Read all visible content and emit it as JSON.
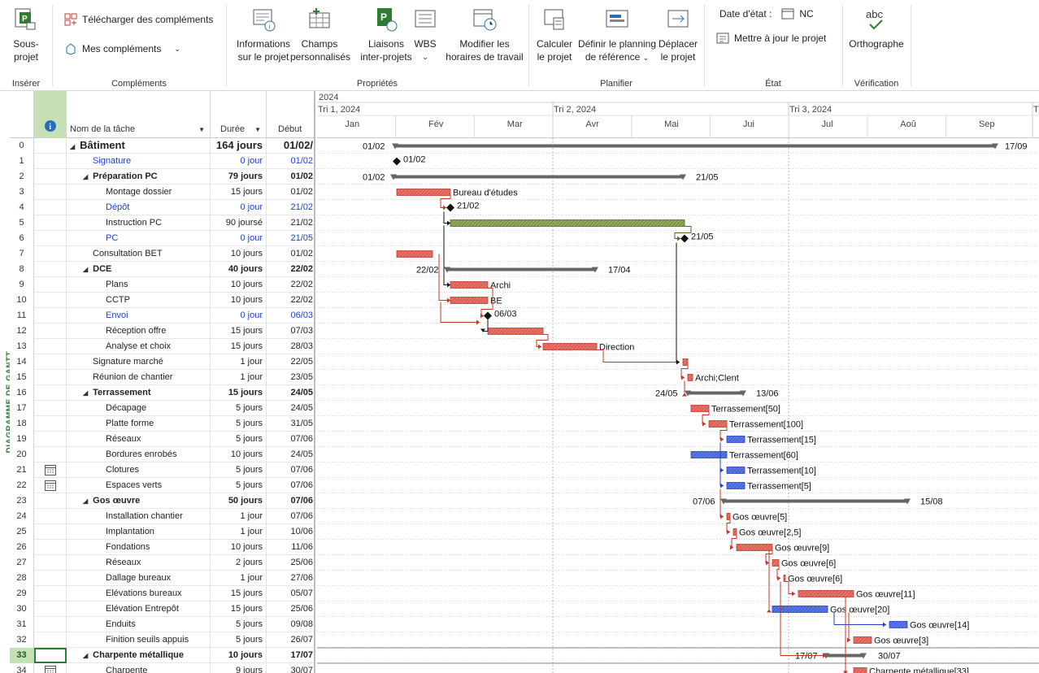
{
  "ribbon": {
    "groups": {
      "inserer": "Insérer",
      "complements": "Compléments",
      "proprietes": "Propriétés",
      "planifier": "Planifier",
      "etat": "État",
      "verification": "Vérification"
    },
    "sous_projet": [
      "Sous-",
      "projet"
    ],
    "telecharger": "Télécharger des compléments",
    "mes_complements": "Mes compléments",
    "infos_projet": [
      "Informations",
      "sur le projet"
    ],
    "champs_perso": [
      "Champs",
      "personnalisés"
    ],
    "liaisons": [
      "Liaisons",
      "inter-projets"
    ],
    "wbs": "WBS",
    "modifier_horaires": [
      "Modifier les",
      "horaires de travail"
    ],
    "calculer": [
      "Calculer",
      "le projet"
    ],
    "definir_planning": [
      "Définir le planning",
      "de référence"
    ],
    "deplacer": [
      "Déplacer",
      "le projet"
    ],
    "date_etat_label": "Date d'état :",
    "date_etat_value": "NC",
    "mettre_a_jour": "Mettre à jour le projet",
    "orthographe": "Orthographe",
    "abc": "abc"
  },
  "sidebar_label": "DIAGRAMME DE GANTT",
  "table": {
    "headers": {
      "name": "Nom de la tâche",
      "duration": "Durée",
      "start": "Début"
    },
    "rows": [
      {
        "id": "0",
        "name": "Bâtiment",
        "dur": "164 jours",
        "start": "01/02/",
        "type": "summary",
        "level": 0
      },
      {
        "id": "1",
        "name": "Signature",
        "dur": "0 jour",
        "start": "01/02",
        "type": "milestone",
        "level": 1
      },
      {
        "id": "2",
        "name": "Préparation PC",
        "dur": "79 jours",
        "start": "01/02",
        "type": "summary",
        "level": 1
      },
      {
        "id": "3",
        "name": "Montage dossier",
        "dur": "15 jours",
        "start": "01/02",
        "type": "task",
        "level": 2
      },
      {
        "id": "4",
        "name": "Dépôt",
        "dur": "0 jour",
        "start": "21/02",
        "type": "milestone",
        "level": 2
      },
      {
        "id": "5",
        "name": "Instruction PC",
        "dur": "90 joursé",
        "start": "21/02",
        "type": "task",
        "level": 2
      },
      {
        "id": "6",
        "name": "PC",
        "dur": "0 jour",
        "start": "21/05",
        "type": "milestone",
        "level": 2
      },
      {
        "id": "7",
        "name": "Consultation BET",
        "dur": "10 jours",
        "start": "01/02",
        "type": "task",
        "level": 1
      },
      {
        "id": "8",
        "name": "DCE",
        "dur": "40 jours",
        "start": "22/02",
        "type": "summary",
        "level": 1
      },
      {
        "id": "9",
        "name": "Plans",
        "dur": "10 jours",
        "start": "22/02",
        "type": "task",
        "level": 2
      },
      {
        "id": "10",
        "name": "CCTP",
        "dur": "10 jours",
        "start": "22/02",
        "type": "task",
        "level": 2
      },
      {
        "id": "11",
        "name": "Envoi",
        "dur": "0 jour",
        "start": "06/03",
        "type": "milestone",
        "level": 2
      },
      {
        "id": "12",
        "name": "Réception offre",
        "dur": "15 jours",
        "start": "07/03",
        "type": "task",
        "level": 2
      },
      {
        "id": "13",
        "name": "Analyse et choix",
        "dur": "15 jours",
        "start": "28/03",
        "type": "task",
        "level": 2
      },
      {
        "id": "14",
        "name": "Signature marché",
        "dur": "1 jour",
        "start": "22/05",
        "type": "task",
        "level": 1
      },
      {
        "id": "15",
        "name": "Réunion de chantier",
        "dur": "1 jour",
        "start": "23/05",
        "type": "task",
        "level": 1
      },
      {
        "id": "16",
        "name": "Terrassement",
        "dur": "15 jours",
        "start": "24/05",
        "type": "summary",
        "level": 1
      },
      {
        "id": "17",
        "name": "Décapage",
        "dur": "5 jours",
        "start": "24/05",
        "type": "task",
        "level": 2
      },
      {
        "id": "18",
        "name": "Platte forme",
        "dur": "5 jours",
        "start": "31/05",
        "type": "task",
        "level": 2
      },
      {
        "id": "19",
        "name": "Réseaux",
        "dur": "5 jours",
        "start": "07/06",
        "type": "task",
        "level": 2
      },
      {
        "id": "20",
        "name": "Bordures enrobés",
        "dur": "10 jours",
        "start": "24/05",
        "type": "task",
        "level": 2
      },
      {
        "id": "21",
        "name": "Clotures",
        "dur": "5 jours",
        "start": "07/06",
        "type": "task",
        "level": 2,
        "calendar": true
      },
      {
        "id": "22",
        "name": "Espaces verts",
        "dur": "5 jours",
        "start": "07/06",
        "type": "task",
        "level": 2,
        "calendar": true
      },
      {
        "id": "23",
        "name": "Gos œuvre",
        "dur": "50 jours",
        "start": "07/06",
        "type": "summary",
        "level": 1
      },
      {
        "id": "24",
        "name": "Installation chantier",
        "dur": "1 jour",
        "start": "07/06",
        "type": "task",
        "level": 2
      },
      {
        "id": "25",
        "name": "Implantation",
        "dur": "1 jour",
        "start": "10/06",
        "type": "task",
        "level": 2
      },
      {
        "id": "26",
        "name": "Fondations",
        "dur": "10 jours",
        "start": "11/06",
        "type": "task",
        "level": 2
      },
      {
        "id": "27",
        "name": "Réseaux",
        "dur": "2 jours",
        "start": "25/06",
        "type": "task",
        "level": 2
      },
      {
        "id": "28",
        "name": "Dallage bureaux",
        "dur": "1 jour",
        "start": "27/06",
        "type": "task",
        "level": 2
      },
      {
        "id": "29",
        "name": "Elévations bureaux",
        "dur": "15 jours",
        "start": "05/07",
        "type": "task",
        "level": 2
      },
      {
        "id": "30",
        "name": "Elévation Entrepôt",
        "dur": "15 jours",
        "start": "25/06",
        "type": "task",
        "level": 2
      },
      {
        "id": "31",
        "name": "Enduits",
        "dur": "5 jours",
        "start": "09/08",
        "type": "task",
        "level": 2
      },
      {
        "id": "32",
        "name": "Finition seuils appuis",
        "dur": "5 jours",
        "start": "26/07",
        "type": "task",
        "level": 2
      },
      {
        "id": "33",
        "name": "Charpente métallique",
        "dur": "10 jours",
        "start": "17/07",
        "type": "summary",
        "level": 1,
        "selected": true
      },
      {
        "id": "34",
        "name": "Charpente",
        "dur": "9 jours",
        "start": "30/07",
        "type": "task",
        "level": 2,
        "calendar": true
      }
    ]
  },
  "gantt": {
    "year": "2024",
    "quarters": [
      "Tri 1, 2024",
      "Tri 2, 2024",
      "Tri 3, 2024",
      "Tri"
    ],
    "months": [
      "Jan",
      "Fév",
      "Mar",
      "Avr",
      "Mai",
      "Jui",
      "Jul",
      "Aoû",
      "Sep"
    ],
    "colors": {
      "critical": "#c0392b",
      "critical_fill": "#e57368",
      "normal_blue": "#2340c8",
      "normal_fill": "#5b78e0",
      "green": "#4f6b2a",
      "green_fill": "#8fab5e",
      "summary": "#666666"
    },
    "labels": {
      "r0_start": "01/02",
      "r0_end": "17/09",
      "r1": "01/02",
      "r2_start": "01/02",
      "r2_end": "21/05",
      "r3": "Bureau d'études",
      "r4": "21/02",
      "r6": "21/05",
      "r8_start": "22/02",
      "r8_end": "17/04",
      "r9": "Archi",
      "r10": "BE",
      "r11": "06/03",
      "r13": "Direction",
      "r15": "Archi;Clent",
      "r16_start": "24/05",
      "r16_end": "13/06",
      "r17": "Terrassement[50]",
      "r18": "Terrassement[100]",
      "r19": "Terrassement[15]",
      "r20": "Terrassement[60]",
      "r21": "Terrassement[10]",
      "r22": "Terrassement[5]",
      "r23_start": "07/06",
      "r23_end": "15/08",
      "r24": "Gos œuvre[5]",
      "r25": "Gos œuvre[2,5]",
      "r26": "Gos œuvre[9]",
      "r27": "Gos œuvre[6]",
      "r28": "Gos œuvre[6]",
      "r29": "Gos œuvre[11]",
      "r30": "Gos œuvre[20]",
      "r31": "Gos œuvre[14]",
      "r32": "Gos œuvre[3]",
      "r33_start": "17/07",
      "r33_end": "30/07",
      "r34": "Charpente métallique[33]"
    }
  }
}
